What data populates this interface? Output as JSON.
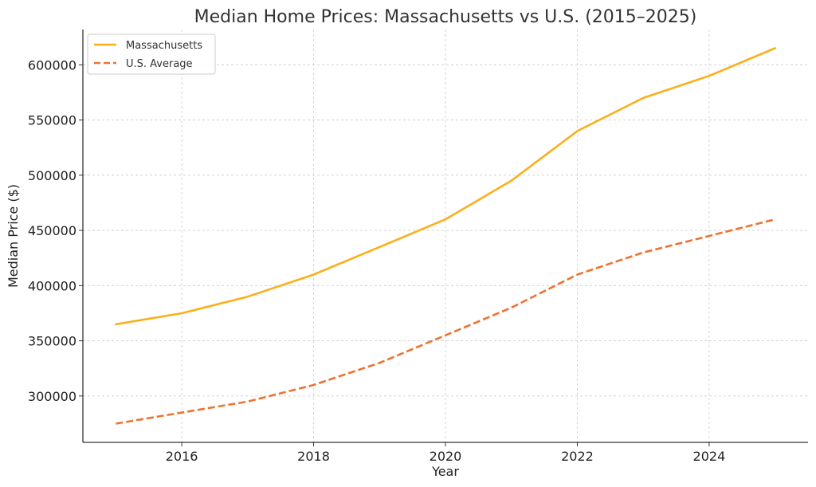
{
  "chart_data": {
    "type": "line",
    "title": "Median Home Prices: Massachusetts vs U.S. (2015–2025)",
    "xlabel": "Year",
    "ylabel": "Median Price ($)",
    "x": [
      2015,
      2016,
      2017,
      2018,
      2019,
      2020,
      2021,
      2022,
      2023,
      2024,
      2025
    ],
    "xlim": [
      2014.5,
      2025.5
    ],
    "ylim": [
      258000,
      632000
    ],
    "xticks": [
      2016,
      2018,
      2020,
      2022,
      2024
    ],
    "yticks": [
      300000,
      350000,
      400000,
      450000,
      500000,
      550000,
      600000
    ],
    "grid": true,
    "legend_position": "top-left",
    "series": [
      {
        "name": "Massachusetts",
        "color": "#FBAF1A",
        "style": "solid",
        "values": [
          365000,
          375000,
          390000,
          410000,
          435000,
          460000,
          495000,
          540000,
          570000,
          590000,
          615000
        ]
      },
      {
        "name": "U.S. Average",
        "color": "#EE7230",
        "style": "dashed",
        "values": [
          275000,
          285000,
          295000,
          310000,
          330000,
          355000,
          380000,
          410000,
          430000,
          445000,
          460000
        ]
      }
    ]
  }
}
